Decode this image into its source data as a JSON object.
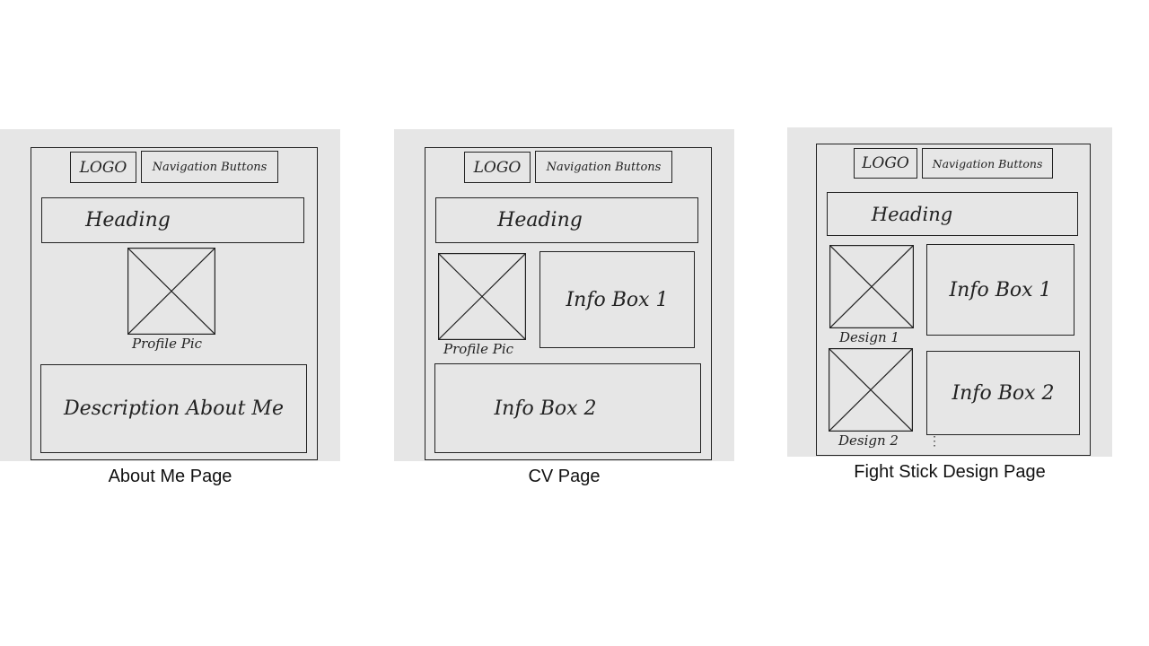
{
  "wireframes": [
    {
      "caption": "About Me Page",
      "logo": "LOGO",
      "nav": "Navigation Buttons",
      "heading": "Heading",
      "profile_pic_label": "Profile Pic",
      "description": "Description About Me"
    },
    {
      "caption": "CV Page",
      "logo": "LOGO",
      "nav": "Navigation Buttons",
      "heading": "Heading",
      "profile_pic_label": "Profile Pic",
      "info_box_1": "Info Box 1",
      "info_box_2": "Info Box 2"
    },
    {
      "caption": "Fight Stick Design Page",
      "logo": "LOGO",
      "nav": "Navigation Buttons",
      "heading": "Heading",
      "design_1_label": "Design 1",
      "design_2_label": "Design 2",
      "info_box_1": "Info Box 1",
      "info_box_2": "Info Box 2",
      "continuation": "⋮"
    }
  ],
  "colors": {
    "panel": "#e6e6e6",
    "line": "#222222"
  }
}
